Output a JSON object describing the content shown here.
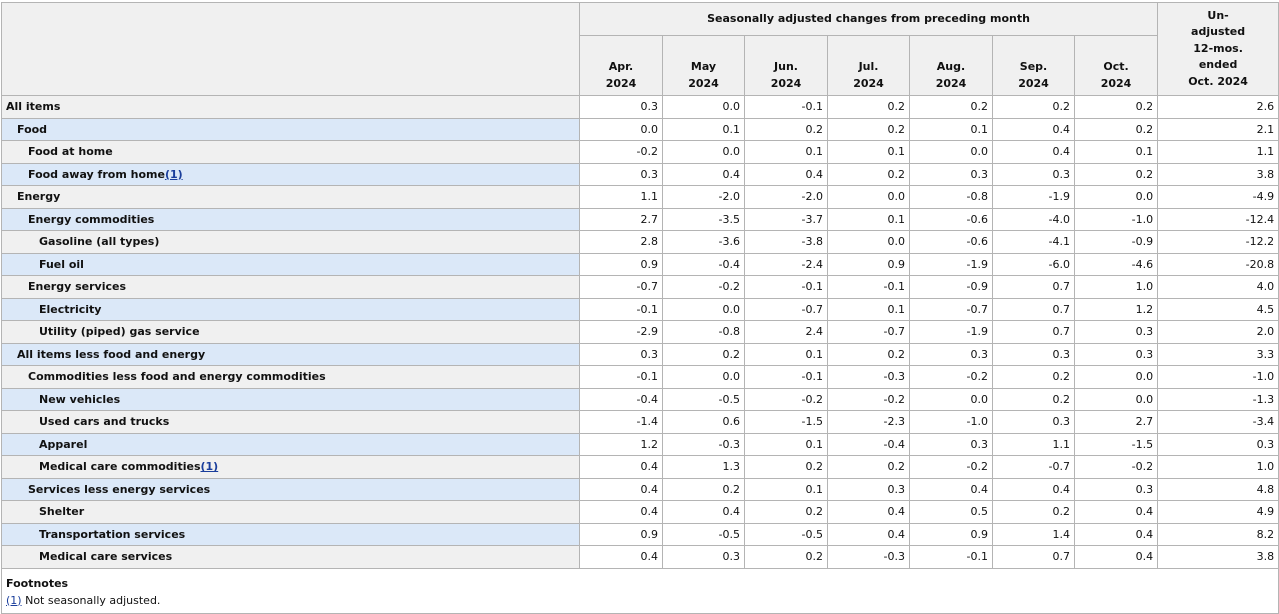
{
  "header": {
    "group_label": "Seasonally adjusted changes from preceding month",
    "months": [
      {
        "m": "Apr.",
        "y": "2024"
      },
      {
        "m": "May",
        "y": "2024"
      },
      {
        "m": "Jun.",
        "y": "2024"
      },
      {
        "m": "Jul.",
        "y": "2024"
      },
      {
        "m": "Aug.",
        "y": "2024"
      },
      {
        "m": "Sep.",
        "y": "2024"
      },
      {
        "m": "Oct.",
        "y": "2024"
      }
    ],
    "unadjusted": [
      "Un-",
      "adjusted",
      "12-mos.",
      "ended",
      "Oct. 2024"
    ]
  },
  "rows": [
    {
      "label": "All items",
      "indent": 0,
      "fn": "",
      "values": [
        "0.3",
        "0.0",
        "-0.1",
        "0.2",
        "0.2",
        "0.2",
        "0.2",
        "2.6"
      ]
    },
    {
      "label": "Food",
      "indent": 1,
      "fn": "",
      "values": [
        "0.0",
        "0.1",
        "0.2",
        "0.2",
        "0.1",
        "0.4",
        "0.2",
        "2.1"
      ]
    },
    {
      "label": "Food at home",
      "indent": 2,
      "fn": "",
      "values": [
        "-0.2",
        "0.0",
        "0.1",
        "0.1",
        "0.0",
        "0.4",
        "0.1",
        "1.1"
      ]
    },
    {
      "label": "Food away from home",
      "indent": 2,
      "fn": "(1)",
      "values": [
        "0.3",
        "0.4",
        "0.4",
        "0.2",
        "0.3",
        "0.3",
        "0.2",
        "3.8"
      ]
    },
    {
      "label": "Energy",
      "indent": 1,
      "fn": "",
      "values": [
        "1.1",
        "-2.0",
        "-2.0",
        "0.0",
        "-0.8",
        "-1.9",
        "0.0",
        "-4.9"
      ]
    },
    {
      "label": "Energy commodities",
      "indent": 2,
      "fn": "",
      "values": [
        "2.7",
        "-3.5",
        "-3.7",
        "0.1",
        "-0.6",
        "-4.0",
        "-1.0",
        "-12.4"
      ]
    },
    {
      "label": "Gasoline (all types)",
      "indent": 3,
      "fn": "",
      "values": [
        "2.8",
        "-3.6",
        "-3.8",
        "0.0",
        "-0.6",
        "-4.1",
        "-0.9",
        "-12.2"
      ]
    },
    {
      "label": "Fuel oil",
      "indent": 3,
      "fn": "",
      "values": [
        "0.9",
        "-0.4",
        "-2.4",
        "0.9",
        "-1.9",
        "-6.0",
        "-4.6",
        "-20.8"
      ]
    },
    {
      "label": "Energy services",
      "indent": 2,
      "fn": "",
      "values": [
        "-0.7",
        "-0.2",
        "-0.1",
        "-0.1",
        "-0.9",
        "0.7",
        "1.0",
        "4.0"
      ]
    },
    {
      "label": "Electricity",
      "indent": 3,
      "fn": "",
      "values": [
        "-0.1",
        "0.0",
        "-0.7",
        "0.1",
        "-0.7",
        "0.7",
        "1.2",
        "4.5"
      ]
    },
    {
      "label": "Utility (piped) gas service",
      "indent": 3,
      "fn": "",
      "values": [
        "-2.9",
        "-0.8",
        "2.4",
        "-0.7",
        "-1.9",
        "0.7",
        "0.3",
        "2.0"
      ]
    },
    {
      "label": "All items less food and energy",
      "indent": 1,
      "fn": "",
      "values": [
        "0.3",
        "0.2",
        "0.1",
        "0.2",
        "0.3",
        "0.3",
        "0.3",
        "3.3"
      ]
    },
    {
      "label": "Commodities less food and energy commodities",
      "indent": 2,
      "fn": "",
      "values": [
        "-0.1",
        "0.0",
        "-0.1",
        "-0.3",
        "-0.2",
        "0.2",
        "0.0",
        "-1.0"
      ]
    },
    {
      "label": "New vehicles",
      "indent": 3,
      "fn": "",
      "values": [
        "-0.4",
        "-0.5",
        "-0.2",
        "-0.2",
        "0.0",
        "0.2",
        "0.0",
        "-1.3"
      ]
    },
    {
      "label": "Used cars and trucks",
      "indent": 3,
      "fn": "",
      "values": [
        "-1.4",
        "0.6",
        "-1.5",
        "-2.3",
        "-1.0",
        "0.3",
        "2.7",
        "-3.4"
      ]
    },
    {
      "label": "Apparel",
      "indent": 3,
      "fn": "",
      "values": [
        "1.2",
        "-0.3",
        "0.1",
        "-0.4",
        "0.3",
        "1.1",
        "-1.5",
        "0.3"
      ]
    },
    {
      "label": "Medical care commodities",
      "indent": 3,
      "fn": "(1)",
      "values": [
        "0.4",
        "1.3",
        "0.2",
        "0.2",
        "-0.2",
        "-0.7",
        "-0.2",
        "1.0"
      ]
    },
    {
      "label": "Services less energy services",
      "indent": 2,
      "fn": "",
      "values": [
        "0.4",
        "0.2",
        "0.1",
        "0.3",
        "0.4",
        "0.4",
        "0.3",
        "4.8"
      ]
    },
    {
      "label": "Shelter",
      "indent": 3,
      "fn": "",
      "values": [
        "0.4",
        "0.4",
        "0.2",
        "0.4",
        "0.5",
        "0.2",
        "0.4",
        "4.9"
      ]
    },
    {
      "label": "Transportation services",
      "indent": 3,
      "fn": "",
      "values": [
        "0.9",
        "-0.5",
        "-0.5",
        "0.4",
        "0.9",
        "1.4",
        "0.4",
        "8.2"
      ]
    },
    {
      "label": "Medical care services",
      "indent": 3,
      "fn": "",
      "values": [
        "0.4",
        "0.3",
        "0.2",
        "-0.3",
        "-0.1",
        "0.7",
        "0.4",
        "3.8"
      ]
    }
  ],
  "footnotes": {
    "title": "Footnotes",
    "items": [
      {
        "ref": "(1)",
        "text": " Not seasonally adjusted."
      }
    ]
  }
}
